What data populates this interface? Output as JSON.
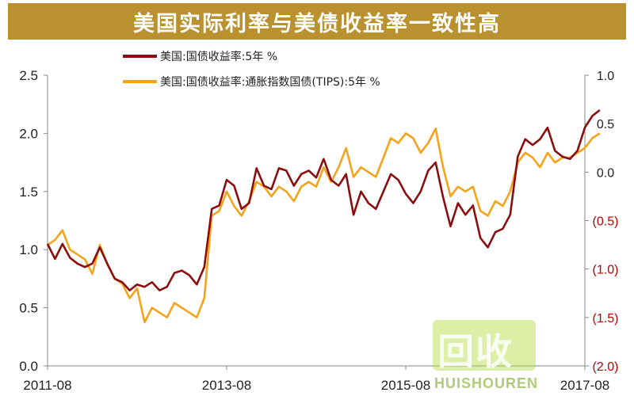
{
  "title": "美国实际利率与美债收益率一致性高",
  "watermark": {
    "logo_text": "回收",
    "sub_text": "HUISHOUREN"
  },
  "colors": {
    "title_bg": "#b9912f",
    "series1": "#8b0e0e",
    "series2": "#f5a31a",
    "neg_label": "#c00000"
  },
  "chart_data": {
    "type": "line",
    "title": "美国实际利率与美债收益率一致性高",
    "x_start": "2011-08",
    "x_end": "2017-08",
    "x_ticks": [
      "2011-08",
      "2013-08",
      "2015-08",
      "2017-08"
    ],
    "y_left": {
      "ticks": [
        "0.0",
        "0.5",
        "1.0",
        "1.5",
        "2.0",
        "2.5"
      ],
      "lim": [
        0,
        2.5
      ]
    },
    "y_right": {
      "ticks": [
        "(2.0)",
        "(1.5)",
        "(1.0)",
        "(0.5)",
        "0.0",
        "0.5",
        "1.0"
      ],
      "lim": [
        -2.0,
        1.0
      ]
    },
    "legend_position": "top",
    "series": [
      {
        "name": "美国:国债收益率:5年 %",
        "axis": "left",
        "points": [
          [
            "2011-08",
            1.05
          ],
          [
            "2011-09",
            0.92
          ],
          [
            "2011-10",
            1.05
          ],
          [
            "2011-11",
            0.93
          ],
          [
            "2011-12",
            0.88
          ],
          [
            "2012-01",
            0.85
          ],
          [
            "2012-02",
            0.88
          ],
          [
            "2012-03",
            1.02
          ],
          [
            "2012-04",
            0.88
          ],
          [
            "2012-05",
            0.75
          ],
          [
            "2012-06",
            0.72
          ],
          [
            "2012-07",
            0.65
          ],
          [
            "2012-08",
            0.7
          ],
          [
            "2012-09",
            0.68
          ],
          [
            "2012-10",
            0.72
          ],
          [
            "2012-11",
            0.65
          ],
          [
            "2012-12",
            0.68
          ],
          [
            "2013-01",
            0.8
          ],
          [
            "2013-02",
            0.82
          ],
          [
            "2013-03",
            0.78
          ],
          [
            "2013-04",
            0.7
          ],
          [
            "2013-05",
            0.85
          ],
          [
            "2013-06",
            1.35
          ],
          [
            "2013-07",
            1.38
          ],
          [
            "2013-08",
            1.6
          ],
          [
            "2013-09",
            1.55
          ],
          [
            "2013-10",
            1.35
          ],
          [
            "2013-11",
            1.4
          ],
          [
            "2013-12",
            1.7
          ],
          [
            "2014-01",
            1.55
          ],
          [
            "2014-02",
            1.52
          ],
          [
            "2014-03",
            1.7
          ],
          [
            "2014-04",
            1.68
          ],
          [
            "2014-05",
            1.55
          ],
          [
            "2014-06",
            1.65
          ],
          [
            "2014-07",
            1.68
          ],
          [
            "2014-08",
            1.62
          ],
          [
            "2014-09",
            1.78
          ],
          [
            "2014-10",
            1.6
          ],
          [
            "2014-11",
            1.55
          ],
          [
            "2014-12",
            1.65
          ],
          [
            "2015-01",
            1.3
          ],
          [
            "2015-02",
            1.5
          ],
          [
            "2015-03",
            1.4
          ],
          [
            "2015-04",
            1.35
          ],
          [
            "2015-05",
            1.5
          ],
          [
            "2015-06",
            1.65
          ],
          [
            "2015-07",
            1.6
          ],
          [
            "2015-08",
            1.48
          ],
          [
            "2015-09",
            1.4
          ],
          [
            "2015-10",
            1.5
          ],
          [
            "2015-11",
            1.68
          ],
          [
            "2015-12",
            1.75
          ],
          [
            "2016-01",
            1.45
          ],
          [
            "2016-02",
            1.2
          ],
          [
            "2016-03",
            1.4
          ],
          [
            "2016-04",
            1.3
          ],
          [
            "2016-05",
            1.38
          ],
          [
            "2016-06",
            1.1
          ],
          [
            "2016-07",
            1.02
          ],
          [
            "2016-08",
            1.15
          ],
          [
            "2016-09",
            1.18
          ],
          [
            "2016-10",
            1.3
          ],
          [
            "2016-11",
            1.8
          ],
          [
            "2016-12",
            1.95
          ],
          [
            "2017-01",
            1.9
          ],
          [
            "2017-02",
            1.95
          ],
          [
            "2017-03",
            2.05
          ],
          [
            "2017-04",
            1.85
          ],
          [
            "2017-05",
            1.8
          ],
          [
            "2017-06",
            1.78
          ],
          [
            "2017-07",
            1.85
          ],
          [
            "2017-08",
            2.05
          ],
          [
            "2017-09",
            2.15
          ],
          [
            "2017-10",
            2.2
          ]
        ]
      },
      {
        "name": "美国:国债收益率:通胀指数国债(TIPS):5年 %",
        "axis": "right",
        "points": [
          [
            "2011-08",
            -0.75
          ],
          [
            "2011-09",
            -0.7
          ],
          [
            "2011-10",
            -0.6
          ],
          [
            "2011-11",
            -0.8
          ],
          [
            "2011-12",
            -0.85
          ],
          [
            "2012-01",
            -0.9
          ],
          [
            "2012-02",
            -1.05
          ],
          [
            "2012-03",
            -0.75
          ],
          [
            "2012-04",
            -0.95
          ],
          [
            "2012-05",
            -1.1
          ],
          [
            "2012-06",
            -1.15
          ],
          [
            "2012-07",
            -1.3
          ],
          [
            "2012-08",
            -1.2
          ],
          [
            "2012-09",
            -1.55
          ],
          [
            "2012-10",
            -1.4
          ],
          [
            "2012-11",
            -1.45
          ],
          [
            "2012-12",
            -1.5
          ],
          [
            "2013-01",
            -1.35
          ],
          [
            "2013-02",
            -1.4
          ],
          [
            "2013-03",
            -1.45
          ],
          [
            "2013-04",
            -1.5
          ],
          [
            "2013-05",
            -1.3
          ],
          [
            "2013-06",
            -0.45
          ],
          [
            "2013-07",
            -0.4
          ],
          [
            "2013-08",
            -0.2
          ],
          [
            "2013-09",
            -0.35
          ],
          [
            "2013-10",
            -0.45
          ],
          [
            "2013-11",
            -0.3
          ],
          [
            "2013-12",
            -0.1
          ],
          [
            "2014-01",
            -0.15
          ],
          [
            "2014-02",
            -0.25
          ],
          [
            "2014-03",
            -0.15
          ],
          [
            "2014-04",
            -0.2
          ],
          [
            "2014-05",
            -0.3
          ],
          [
            "2014-06",
            -0.15
          ],
          [
            "2014-07",
            -0.1
          ],
          [
            "2014-08",
            -0.15
          ],
          [
            "2014-09",
            0.05
          ],
          [
            "2014-10",
            -0.1
          ],
          [
            "2014-11",
            0.05
          ],
          [
            "2014-12",
            0.25
          ],
          [
            "2015-01",
            -0.05
          ],
          [
            "2015-02",
            0.05
          ],
          [
            "2015-03",
            0.0
          ],
          [
            "2015-04",
            -0.05
          ],
          [
            "2015-05",
            0.15
          ],
          [
            "2015-06",
            0.35
          ],
          [
            "2015-07",
            0.3
          ],
          [
            "2015-08",
            0.4
          ],
          [
            "2015-09",
            0.35
          ],
          [
            "2015-10",
            0.2
          ],
          [
            "2015-11",
            0.3
          ],
          [
            "2015-12",
            0.45
          ],
          [
            "2016-01",
            0.05
          ],
          [
            "2016-02",
            -0.25
          ],
          [
            "2016-03",
            -0.15
          ],
          [
            "2016-04",
            -0.2
          ],
          [
            "2016-05",
            -0.15
          ],
          [
            "2016-06",
            -0.4
          ],
          [
            "2016-07",
            -0.45
          ],
          [
            "2016-08",
            -0.3
          ],
          [
            "2016-09",
            -0.35
          ],
          [
            "2016-10",
            -0.2
          ],
          [
            "2016-11",
            0.1
          ],
          [
            "2016-12",
            0.2
          ],
          [
            "2017-01",
            0.15
          ],
          [
            "2017-02",
            0.05
          ],
          [
            "2017-03",
            0.2
          ],
          [
            "2017-04",
            0.1
          ],
          [
            "2017-05",
            0.15
          ],
          [
            "2017-06",
            0.15
          ],
          [
            "2017-07",
            0.2
          ],
          [
            "2017-08",
            0.25
          ],
          [
            "2017-09",
            0.35
          ],
          [
            "2017-10",
            0.4
          ]
        ]
      }
    ]
  }
}
